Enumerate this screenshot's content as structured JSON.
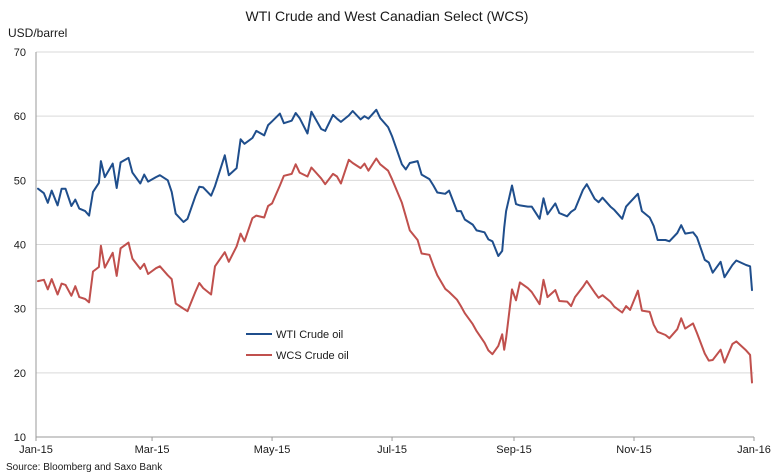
{
  "chart_data": {
    "type": "line",
    "title": "WTI Crude and West Canadian Select (WCS)",
    "unit_label": "USD/barrel",
    "source": "Source: Bloomberg and Saxo Bank",
    "ylim": [
      10,
      70
    ],
    "y_ticks": [
      10,
      20,
      30,
      40,
      50,
      60,
      70
    ],
    "x_range": [
      "2015-01-01",
      "2016-01-01"
    ],
    "x_ticks": [
      {
        "date": "2015-01-01",
        "label": "Jan-15"
      },
      {
        "date": "2015-03-01",
        "label": "Mar-15"
      },
      {
        "date": "2015-05-01",
        "label": "May-15"
      },
      {
        "date": "2015-07-01",
        "label": "Jul-15"
      },
      {
        "date": "2015-09-01",
        "label": "Sep-15"
      },
      {
        "date": "2015-11-01",
        "label": "Nov-15"
      },
      {
        "date": "2016-01-01",
        "label": "Jan-16"
      }
    ],
    "grid": "horizontal",
    "legend_position": "lower-left inside plot",
    "series": [
      {
        "name": "WTI Crude oil",
        "color": "#1f4e8c",
        "points": [
          [
            "2015-01-02",
            48.7
          ],
          [
            "2015-01-05",
            48.0
          ],
          [
            "2015-01-07",
            46.5
          ],
          [
            "2015-01-09",
            48.4
          ],
          [
            "2015-01-12",
            46.1
          ],
          [
            "2015-01-14",
            48.7
          ],
          [
            "2015-01-16",
            48.7
          ],
          [
            "2015-01-19",
            46.0
          ],
          [
            "2015-01-21",
            47.0
          ],
          [
            "2015-01-23",
            45.6
          ],
          [
            "2015-01-26",
            45.2
          ],
          [
            "2015-01-28",
            44.5
          ],
          [
            "2015-01-30",
            48.2
          ],
          [
            "2015-02-02",
            49.6
          ],
          [
            "2015-02-03",
            53.0
          ],
          [
            "2015-02-05",
            50.5
          ],
          [
            "2015-02-09",
            52.6
          ],
          [
            "2015-02-11",
            48.8
          ],
          [
            "2015-02-13",
            52.8
          ],
          [
            "2015-02-17",
            53.5
          ],
          [
            "2015-02-19",
            51.2
          ],
          [
            "2015-02-23",
            49.5
          ],
          [
            "2015-02-25",
            50.9
          ],
          [
            "2015-02-27",
            49.8
          ],
          [
            "2015-03-03",
            50.5
          ],
          [
            "2015-03-05",
            50.8
          ],
          [
            "2015-03-09",
            50.0
          ],
          [
            "2015-03-11",
            48.2
          ],
          [
            "2015-03-13",
            44.8
          ],
          [
            "2015-03-17",
            43.5
          ],
          [
            "2015-03-19",
            44.0
          ],
          [
            "2015-03-23",
            47.5
          ],
          [
            "2015-03-25",
            49.0
          ],
          [
            "2015-03-27",
            48.9
          ],
          [
            "2015-03-31",
            47.6
          ],
          [
            "2015-04-02",
            49.1
          ],
          [
            "2015-04-07",
            53.9
          ],
          [
            "2015-04-09",
            50.8
          ],
          [
            "2015-04-13",
            51.9
          ],
          [
            "2015-04-15",
            56.4
          ],
          [
            "2015-04-17",
            55.7
          ],
          [
            "2015-04-21",
            56.6
          ],
          [
            "2015-04-23",
            57.7
          ],
          [
            "2015-04-27",
            57.0
          ],
          [
            "2015-04-29",
            58.6
          ],
          [
            "2015-05-01",
            59.2
          ],
          [
            "2015-05-05",
            60.4
          ],
          [
            "2015-05-07",
            58.9
          ],
          [
            "2015-05-11",
            59.3
          ],
          [
            "2015-05-13",
            60.5
          ],
          [
            "2015-05-15",
            59.7
          ],
          [
            "2015-05-19",
            57.3
          ],
          [
            "2015-05-21",
            60.7
          ],
          [
            "2015-05-26",
            58.0
          ],
          [
            "2015-05-28",
            57.7
          ],
          [
            "2015-06-01",
            60.2
          ],
          [
            "2015-06-03",
            59.6
          ],
          [
            "2015-06-05",
            59.1
          ],
          [
            "2015-06-09",
            60.1
          ],
          [
            "2015-06-11",
            60.8
          ],
          [
            "2015-06-15",
            59.5
          ],
          [
            "2015-06-17",
            60.0
          ],
          [
            "2015-06-19",
            59.6
          ],
          [
            "2015-06-23",
            61.0
          ],
          [
            "2015-06-25",
            59.7
          ],
          [
            "2015-06-29",
            58.3
          ],
          [
            "2015-07-01",
            56.9
          ],
          [
            "2015-07-06",
            52.5
          ],
          [
            "2015-07-08",
            51.7
          ],
          [
            "2015-07-10",
            52.7
          ],
          [
            "2015-07-14",
            53.0
          ],
          [
            "2015-07-16",
            50.9
          ],
          [
            "2015-07-20",
            50.2
          ],
          [
            "2015-07-22",
            49.2
          ],
          [
            "2015-07-24",
            48.1
          ],
          [
            "2015-07-28",
            47.9
          ],
          [
            "2015-07-30",
            48.4
          ],
          [
            "2015-08-03",
            45.2
          ],
          [
            "2015-08-05",
            45.2
          ],
          [
            "2015-08-07",
            43.9
          ],
          [
            "2015-08-11",
            43.1
          ],
          [
            "2015-08-13",
            42.2
          ],
          [
            "2015-08-17",
            41.9
          ],
          [
            "2015-08-19",
            40.8
          ],
          [
            "2015-08-21",
            40.5
          ],
          [
            "2015-08-24",
            38.2
          ],
          [
            "2015-08-26",
            39.0
          ],
          [
            "2015-08-27",
            42.6
          ],
          [
            "2015-08-28",
            45.2
          ],
          [
            "2015-08-31",
            49.2
          ],
          [
            "2015-09-02",
            46.3
          ],
          [
            "2015-09-04",
            46.1
          ],
          [
            "2015-09-08",
            45.9
          ],
          [
            "2015-09-10",
            45.9
          ],
          [
            "2015-09-14",
            44.0
          ],
          [
            "2015-09-16",
            47.2
          ],
          [
            "2015-09-18",
            44.7
          ],
          [
            "2015-09-22",
            46.4
          ],
          [
            "2015-09-24",
            44.9
          ],
          [
            "2015-09-28",
            44.4
          ],
          [
            "2015-09-30",
            45.1
          ],
          [
            "2015-10-02",
            45.5
          ],
          [
            "2015-10-06",
            48.5
          ],
          [
            "2015-10-08",
            49.4
          ],
          [
            "2015-10-12",
            47.1
          ],
          [
            "2015-10-14",
            46.6
          ],
          [
            "2015-10-16",
            47.3
          ],
          [
            "2015-10-20",
            45.9
          ],
          [
            "2015-10-22",
            45.4
          ],
          [
            "2015-10-26",
            44.0
          ],
          [
            "2015-10-28",
            45.9
          ],
          [
            "2015-10-30",
            46.6
          ],
          [
            "2015-11-03",
            47.9
          ],
          [
            "2015-11-05",
            45.2
          ],
          [
            "2015-11-09",
            44.2
          ],
          [
            "2015-11-11",
            42.9
          ],
          [
            "2015-11-13",
            40.7
          ],
          [
            "2015-11-17",
            40.7
          ],
          [
            "2015-11-19",
            40.5
          ],
          [
            "2015-11-23",
            41.8
          ],
          [
            "2015-11-25",
            43.0
          ],
          [
            "2015-11-27",
            41.7
          ],
          [
            "2015-12-01",
            41.9
          ],
          [
            "2015-12-03",
            41.1
          ],
          [
            "2015-12-07",
            37.6
          ],
          [
            "2015-12-09",
            37.2
          ],
          [
            "2015-12-11",
            35.6
          ],
          [
            "2015-12-15",
            37.3
          ],
          [
            "2015-12-17",
            34.9
          ],
          [
            "2015-12-21",
            36.8
          ],
          [
            "2015-12-23",
            37.5
          ],
          [
            "2015-12-28",
            36.8
          ],
          [
            "2015-12-30",
            36.6
          ],
          [
            "2015-12-31",
            32.9
          ]
        ]
      },
      {
        "name": "WCS Crude oil",
        "color": "#c0504d",
        "points": [
          [
            "2015-01-02",
            34.3
          ],
          [
            "2015-01-05",
            34.5
          ],
          [
            "2015-01-07",
            33.0
          ],
          [
            "2015-01-09",
            34.6
          ],
          [
            "2015-01-12",
            32.2
          ],
          [
            "2015-01-14",
            33.9
          ],
          [
            "2015-01-16",
            33.7
          ],
          [
            "2015-01-19",
            32.0
          ],
          [
            "2015-01-21",
            33.5
          ],
          [
            "2015-01-23",
            31.8
          ],
          [
            "2015-01-26",
            31.5
          ],
          [
            "2015-01-28",
            31.0
          ],
          [
            "2015-01-30",
            35.8
          ],
          [
            "2015-02-02",
            36.5
          ],
          [
            "2015-02-03",
            39.8
          ],
          [
            "2015-02-05",
            36.4
          ],
          [
            "2015-02-09",
            38.7
          ],
          [
            "2015-02-11",
            35.1
          ],
          [
            "2015-02-13",
            39.4
          ],
          [
            "2015-02-17",
            40.3
          ],
          [
            "2015-02-19",
            37.8
          ],
          [
            "2015-02-23",
            36.2
          ],
          [
            "2015-02-25",
            37.0
          ],
          [
            "2015-02-27",
            35.4
          ],
          [
            "2015-03-03",
            36.3
          ],
          [
            "2015-03-05",
            36.6
          ],
          [
            "2015-03-09",
            35.2
          ],
          [
            "2015-03-11",
            34.6
          ],
          [
            "2015-03-13",
            30.8
          ],
          [
            "2015-03-17",
            30.0
          ],
          [
            "2015-03-19",
            29.6
          ],
          [
            "2015-03-23",
            32.6
          ],
          [
            "2015-03-25",
            34.0
          ],
          [
            "2015-03-27",
            33.2
          ],
          [
            "2015-03-31",
            32.2
          ],
          [
            "2015-04-02",
            36.6
          ],
          [
            "2015-04-07",
            38.8
          ],
          [
            "2015-04-09",
            37.3
          ],
          [
            "2015-04-13",
            39.7
          ],
          [
            "2015-04-15",
            41.7
          ],
          [
            "2015-04-17",
            40.5
          ],
          [
            "2015-04-21",
            44.1
          ],
          [
            "2015-04-23",
            44.5
          ],
          [
            "2015-04-27",
            44.2
          ],
          [
            "2015-04-29",
            46.0
          ],
          [
            "2015-05-01",
            46.4
          ],
          [
            "2015-05-05",
            49.2
          ],
          [
            "2015-05-07",
            50.7
          ],
          [
            "2015-05-11",
            51.0
          ],
          [
            "2015-05-13",
            52.5
          ],
          [
            "2015-05-15",
            51.2
          ],
          [
            "2015-05-19",
            50.6
          ],
          [
            "2015-05-21",
            52.0
          ],
          [
            "2015-05-26",
            50.3
          ],
          [
            "2015-05-28",
            49.4
          ],
          [
            "2015-06-01",
            51.0
          ],
          [
            "2015-06-03",
            50.6
          ],
          [
            "2015-06-05",
            49.5
          ],
          [
            "2015-06-09",
            53.2
          ],
          [
            "2015-06-11",
            52.7
          ],
          [
            "2015-06-15",
            51.9
          ],
          [
            "2015-06-17",
            52.6
          ],
          [
            "2015-06-19",
            51.5
          ],
          [
            "2015-06-23",
            53.4
          ],
          [
            "2015-06-25",
            52.5
          ],
          [
            "2015-06-29",
            51.5
          ],
          [
            "2015-07-01",
            50.2
          ],
          [
            "2015-07-06",
            46.5
          ],
          [
            "2015-07-08",
            44.4
          ],
          [
            "2015-07-10",
            42.2
          ],
          [
            "2015-07-14",
            40.7
          ],
          [
            "2015-07-16",
            38.6
          ],
          [
            "2015-07-20",
            38.4
          ],
          [
            "2015-07-22",
            36.7
          ],
          [
            "2015-07-24",
            35.2
          ],
          [
            "2015-07-28",
            33.1
          ],
          [
            "2015-07-30",
            32.6
          ],
          [
            "2015-08-03",
            31.4
          ],
          [
            "2015-08-05",
            30.4
          ],
          [
            "2015-08-07",
            29.3
          ],
          [
            "2015-08-11",
            27.6
          ],
          [
            "2015-08-13",
            26.5
          ],
          [
            "2015-08-17",
            24.7
          ],
          [
            "2015-08-19",
            23.5
          ],
          [
            "2015-08-21",
            22.9
          ],
          [
            "2015-08-24",
            24.2
          ],
          [
            "2015-08-26",
            26.0
          ],
          [
            "2015-08-27",
            23.6
          ],
          [
            "2015-08-28",
            25.4
          ],
          [
            "2015-08-31",
            33.0
          ],
          [
            "2015-09-02",
            31.3
          ],
          [
            "2015-09-04",
            34.1
          ],
          [
            "2015-09-08",
            33.2
          ],
          [
            "2015-09-10",
            32.6
          ],
          [
            "2015-09-14",
            30.7
          ],
          [
            "2015-09-16",
            34.5
          ],
          [
            "2015-09-18",
            31.8
          ],
          [
            "2015-09-22",
            32.9
          ],
          [
            "2015-09-24",
            31.2
          ],
          [
            "2015-09-28",
            31.1
          ],
          [
            "2015-09-30",
            30.4
          ],
          [
            "2015-10-02",
            31.8
          ],
          [
            "2015-10-06",
            33.4
          ],
          [
            "2015-10-08",
            34.3
          ],
          [
            "2015-10-12",
            32.5
          ],
          [
            "2015-10-14",
            31.7
          ],
          [
            "2015-10-16",
            32.1
          ],
          [
            "2015-10-20",
            31.1
          ],
          [
            "2015-10-22",
            30.3
          ],
          [
            "2015-10-26",
            29.4
          ],
          [
            "2015-10-28",
            30.4
          ],
          [
            "2015-10-30",
            29.8
          ],
          [
            "2015-11-03",
            32.8
          ],
          [
            "2015-11-05",
            29.7
          ],
          [
            "2015-11-09",
            29.5
          ],
          [
            "2015-11-11",
            27.5
          ],
          [
            "2015-11-13",
            26.4
          ],
          [
            "2015-11-17",
            25.9
          ],
          [
            "2015-11-19",
            25.4
          ],
          [
            "2015-11-23",
            26.8
          ],
          [
            "2015-11-25",
            28.5
          ],
          [
            "2015-11-27",
            26.9
          ],
          [
            "2015-12-01",
            27.7
          ],
          [
            "2015-12-03",
            26.2
          ],
          [
            "2015-12-07",
            23.0
          ],
          [
            "2015-12-09",
            21.9
          ],
          [
            "2015-12-11",
            22.0
          ],
          [
            "2015-12-15",
            23.6
          ],
          [
            "2015-12-17",
            21.6
          ],
          [
            "2015-12-21",
            24.5
          ],
          [
            "2015-12-23",
            24.9
          ],
          [
            "2015-12-28",
            23.5
          ],
          [
            "2015-12-30",
            22.8
          ],
          [
            "2015-12-31",
            18.5
          ]
        ]
      }
    ]
  }
}
